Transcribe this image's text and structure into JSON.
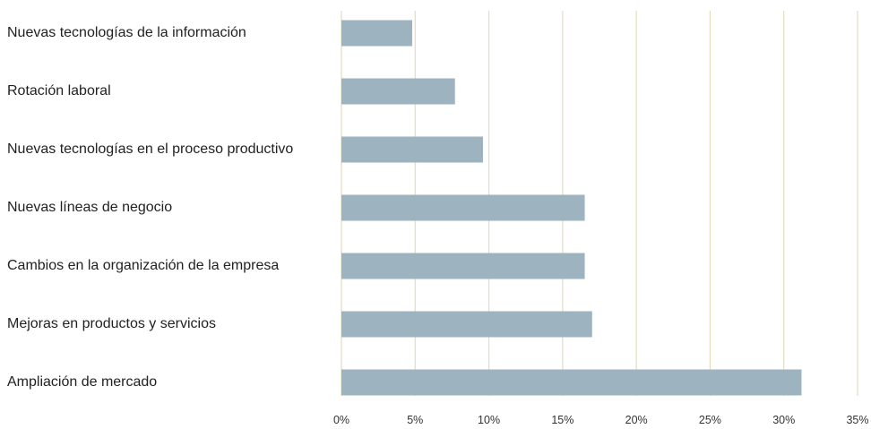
{
  "chart_data": {
    "type": "bar",
    "orientation": "horizontal",
    "categories": [
      "Nuevas tecnologías de la información",
      "Rotación laboral",
      "Nuevas tecnologías en el proceso productivo",
      "Nuevas líneas de negocio",
      "Cambios en la organización de la empresa",
      "Mejoras en productos y servicios",
      "Ampliación de mercado"
    ],
    "values": [
      4.8,
      7.7,
      9.6,
      16.5,
      16.5,
      17.0,
      31.2
    ],
    "xlim": [
      0,
      35
    ],
    "xticks": [
      0,
      5,
      10,
      15,
      20,
      25,
      30,
      35
    ],
    "xtick_labels": [
      "0%",
      "5%",
      "10%",
      "15%",
      "20%",
      "25%",
      "30%",
      "35%"
    ],
    "grid": "vertical",
    "legend": "none",
    "colors": {
      "bar": "#9db3bf",
      "grid": "#e2dcc0",
      "text": "#222222"
    }
  }
}
